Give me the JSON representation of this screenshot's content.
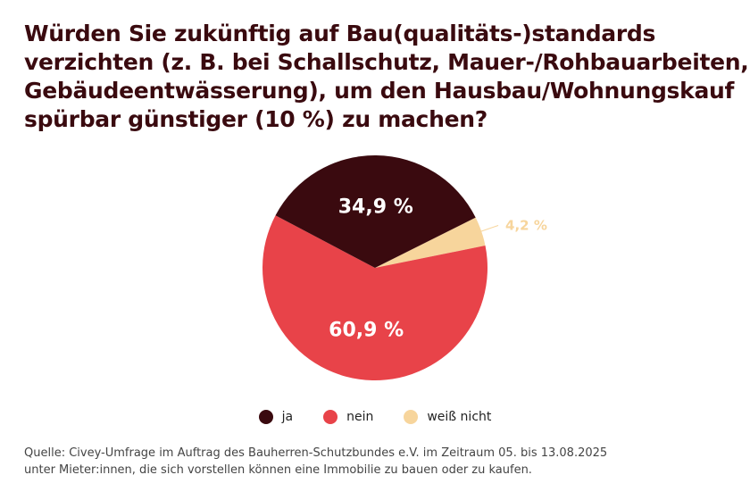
{
  "title_lines": [
    "Würden Sie zukünftig auf Bau(qualitäts-)standards",
    "verzichten (z. B. bei Schallschutz, Mauer-/Rohbauarbeiten,",
    "Gebäudeentwässerung), um den Hausbau/Wohnungskauf",
    "spürbar günstiger (10 %) zu machen?"
  ],
  "chart_data": {
    "type": "pie",
    "slices": [
      {
        "label": "ja",
        "value": 34.9,
        "display": "34,9 %",
        "color": "#3a0a0f"
      },
      {
        "label": "nein",
        "value": 60.9,
        "display": "60,9 %",
        "color": "#e84349"
      },
      {
        "label": "weiß nicht",
        "value": 4.2,
        "display": "4,2 %",
        "color": "#f7d59c"
      }
    ],
    "legend_position": "bottom"
  },
  "source_lines": [
    "Quelle: Civey-Umfrage im Auftrag des Bauherren-Schutzbundes e.V. im Zeitraum 05. bis 13.08.2025",
    "unter Mieter:innen, die sich vorstellen können eine Immobilie zu bauen oder zu kaufen."
  ]
}
